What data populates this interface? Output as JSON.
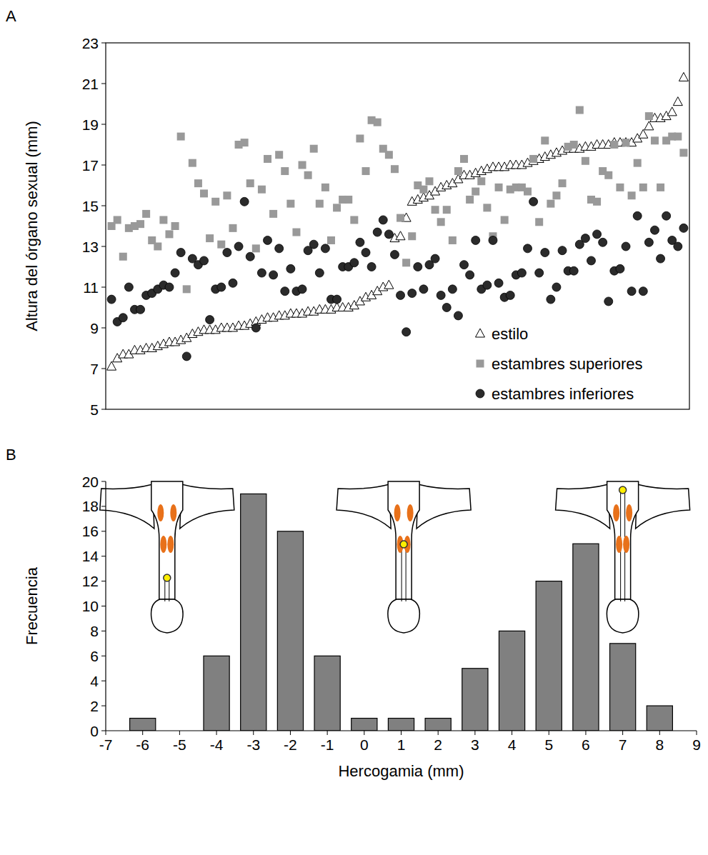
{
  "chart_data": [
    {
      "type": "scatter",
      "title": "A",
      "ylabel": "Altura del órgano sexual (mm)",
      "x": [
        1,
        2,
        3,
        4,
        5,
        6,
        7,
        8,
        9,
        10,
        11,
        12,
        13,
        14,
        15,
        16,
        17,
        18,
        19,
        20,
        21,
        22,
        23,
        24,
        25,
        26,
        27,
        28,
        29,
        30,
        31,
        32,
        33,
        34,
        35,
        36,
        37,
        38,
        39,
        40,
        41,
        42,
        43,
        44,
        45,
        46,
        47,
        48,
        49,
        50,
        51,
        52,
        53,
        54,
        55,
        56,
        57,
        58,
        59,
        60,
        61,
        62,
        63,
        64,
        65,
        66,
        67,
        68,
        69,
        70,
        71,
        72,
        73,
        74,
        75,
        76,
        77,
        78,
        79,
        80,
        81,
        82,
        83,
        84,
        85,
        86,
        87,
        88,
        89,
        90,
        91,
        92,
        93,
        94,
        95,
        96,
        97,
        98,
        99,
        100
      ],
      "series": [
        {
          "name": "estilo",
          "color": "#ffffff",
          "marker": "triangle",
          "values": [
            7.1,
            7.5,
            7.7,
            7.7,
            7.9,
            7.9,
            8.0,
            8.0,
            8.1,
            8.2,
            8.3,
            8.3,
            8.4,
            8.5,
            8.7,
            8.8,
            8.9,
            8.9,
            8.9,
            9.0,
            9.0,
            9.0,
            9.1,
            9.1,
            9.2,
            9.3,
            9.4,
            9.5,
            9.5,
            9.6,
            9.6,
            9.7,
            9.7,
            9.7,
            9.8,
            9.8,
            9.9,
            9.9,
            9.9,
            10.0,
            10.0,
            10.0,
            10.1,
            10.3,
            10.5,
            10.6,
            10.8,
            11.0,
            11.1,
            13.4,
            13.5,
            14.4,
            15.2,
            15.3,
            15.4,
            15.5,
            15.7,
            15.9,
            16.0,
            16.1,
            16.3,
            16.5,
            16.5,
            16.6,
            16.7,
            16.8,
            16.9,
            16.9,
            16.9,
            17.0,
            17.0,
            17.0,
            17.1,
            17.2,
            17.3,
            17.4,
            17.5,
            17.6,
            17.7,
            17.8,
            17.8,
            17.8,
            17.9,
            17.9,
            18.0,
            18.0,
            18.0,
            18.1,
            18.1,
            18.1,
            18.1,
            18.3,
            18.5,
            18.9,
            19.3,
            19.3,
            19.4,
            19.6,
            20.1,
            21.3
          ]
        },
        {
          "name": "estambres superiores",
          "color": "#999999",
          "marker": "square",
          "values": [
            14.0,
            14.3,
            12.5,
            13.9,
            14.0,
            14.1,
            14.6,
            13.3,
            13.0,
            14.3,
            13.6,
            14.0,
            18.4,
            10.9,
            17.1,
            16.1,
            15.6,
            13.4,
            15.2,
            13.1,
            15.5,
            13.9,
            18.0,
            18.1,
            16.1,
            12.9,
            15.8,
            17.3,
            14.6,
            17.5,
            16.7,
            15.1,
            13.7,
            17.0,
            16.5,
            17.8,
            15.1,
            15.9,
            13.3,
            14.9,
            15.3,
            15.3,
            14.3,
            18.3,
            16.7,
            19.2,
            19.1,
            17.8,
            17.5,
            16.8,
            14.4,
            12.2,
            13.5,
            16.0,
            15.8,
            16.2,
            14.8,
            14.2,
            14.8,
            13.3,
            16.7,
            17.3,
            15.3,
            15.7,
            16.2,
            14.9,
            13.5,
            15.9,
            14.3,
            15.8,
            15.9,
            15.9,
            15.7,
            17.3,
            14.2,
            18.2,
            15.1,
            15.5,
            16.1,
            17.9,
            18.0,
            19.7,
            17.2,
            15.3,
            15.2,
            16.7,
            16.5,
            18.0,
            15.9,
            18.1,
            15.5,
            17.1,
            15.9,
            19.4,
            18.2,
            15.9,
            18.2,
            18.4,
            18.4,
            17.6
          ]
        },
        {
          "name": "estambres inferiores",
          "color": "#2b2b2b",
          "marker": "circle",
          "values": [
            10.4,
            9.3,
            9.5,
            11.0,
            9.9,
            9.9,
            10.6,
            10.7,
            10.9,
            11.1,
            11.0,
            11.7,
            12.7,
            7.6,
            12.4,
            12.1,
            12.3,
            9.4,
            10.9,
            11.0,
            12.7,
            11.2,
            13.0,
            15.2,
            12.5,
            9.0,
            11.7,
            13.3,
            11.6,
            12.9,
            10.8,
            11.9,
            10.8,
            10.9,
            12.8,
            13.1,
            11.7,
            12.9,
            10.4,
            10.4,
            12.0,
            12.0,
            12.2,
            13.2,
            12.7,
            12.0,
            13.7,
            14.3,
            13.6,
            12.6,
            10.6,
            8.8,
            10.7,
            12.0,
            10.9,
            12.1,
            12.4,
            10.6,
            10.0,
            10.9,
            9.6,
            12.1,
            11.6,
            13.3,
            10.9,
            11.1,
            13.3,
            11.2,
            10.5,
            10.6,
            11.6,
            11.7,
            12.9,
            15.2,
            11.7,
            12.7,
            10.4,
            11.0,
            12.8,
            11.8,
            11.8,
            13.1,
            13.4,
            12.3,
            13.6,
            13.2,
            10.3,
            11.8,
            11.9,
            13.0,
            10.8,
            14.5,
            10.8,
            13.2,
            13.8,
            12.4,
            14.5,
            13.3,
            13.0,
            13.9
          ]
        }
      ],
      "xlim": [
        0,
        101
      ],
      "xticks": [],
      "ylim": [
        5,
        23
      ],
      "yticks": [
        5,
        7,
        9,
        11,
        13,
        15,
        17,
        19,
        21,
        23
      ],
      "grid": false,
      "legend": "lower right",
      "tick_labels": "y"
    },
    {
      "type": "bar",
      "title": "B",
      "xlabel": "Hercogamia (mm)",
      "ylabel": "Frecuencia",
      "x": [
        -6,
        -5,
        -4,
        -3,
        -2,
        -1,
        0,
        1,
        2,
        3,
        4,
        5,
        6,
        7,
        8
      ],
      "values": [
        1,
        0,
        6,
        19,
        16,
        6,
        1,
        1,
        1,
        5,
        8,
        12,
        15,
        7,
        2
      ],
      "color": "#808080",
      "xlim": [
        -7,
        9
      ],
      "xticks": [
        -7,
        -6,
        -5,
        -4,
        -3,
        -2,
        -1,
        0,
        1,
        2,
        3,
        4,
        5,
        6,
        7,
        8,
        9
      ],
      "ylim": [
        0,
        20
      ],
      "yticks": [
        0,
        2,
        4,
        6,
        8,
        10,
        12,
        14,
        16,
        18,
        20
      ],
      "grid": false
    }
  ]
}
